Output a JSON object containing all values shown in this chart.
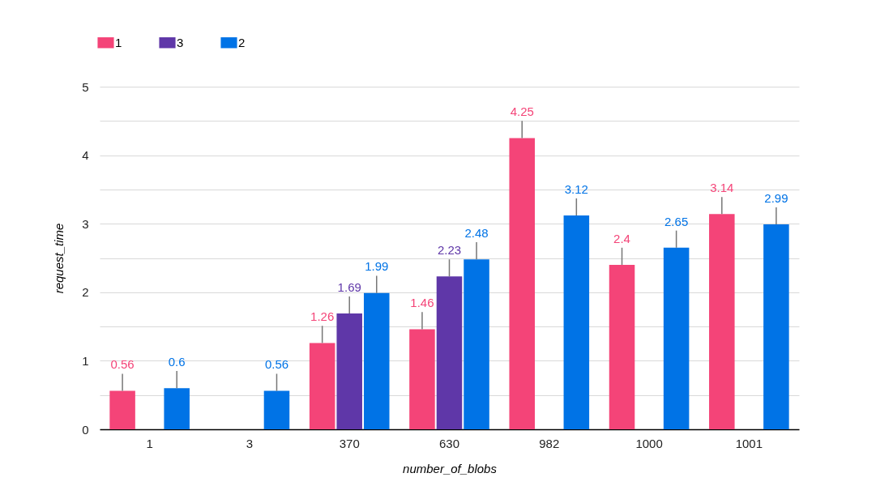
{
  "chart_data": {
    "type": "bar",
    "xlabel": "number_of_blobs",
    "ylabel": "request_time",
    "categories": [
      "1",
      "3",
      "370",
      "630",
      "982",
      "1000",
      "1001"
    ],
    "series": [
      {
        "name": "1",
        "color": "#f44478",
        "values": [
          0.56,
          null,
          1.26,
          1.46,
          4.25,
          2.4,
          3.14
        ],
        "errors": [
          [
            0.56,
            0.81
          ],
          null,
          [
            1.26,
            1.51
          ],
          [
            1.46,
            1.71
          ],
          [
            4.25,
            4.5
          ],
          [
            2.4,
            2.65
          ],
          [
            3.14,
            3.39
          ]
        ]
      },
      {
        "name": "3",
        "color": "#5f37a8",
        "values": [
          null,
          null,
          1.69,
          2.23,
          null,
          null,
          null
        ],
        "errors": [
          null,
          null,
          [
            1.69,
            1.94
          ],
          [
            2.23,
            2.48
          ],
          null,
          null,
          null
        ]
      },
      {
        "name": "2",
        "color": "#0073e6",
        "values": [
          0.6,
          0.56,
          1.99,
          2.48,
          3.12,
          2.65,
          2.99
        ],
        "errors": [
          [
            0.6,
            0.85
          ],
          [
            0.56,
            0.81
          ],
          [
            1.99,
            2.24
          ],
          [
            2.48,
            2.73
          ],
          [
            3.12,
            3.37
          ],
          [
            2.65,
            2.9
          ],
          [
            2.99,
            3.24
          ]
        ]
      }
    ],
    "ylim": [
      0,
      5
    ],
    "yticks": [
      0,
      {
        "value": 0.5,
        "label": null
      },
      1,
      {
        "value": 1.5,
        "label": null
      },
      2,
      {
        "value": 2.5,
        "label": null
      },
      3,
      {
        "value": 3.5,
        "label": null
      },
      4,
      {
        "value": 4.5,
        "label": null
      },
      5
    ],
    "grid": "y",
    "legend": "top left",
    "data_labels": true
  }
}
